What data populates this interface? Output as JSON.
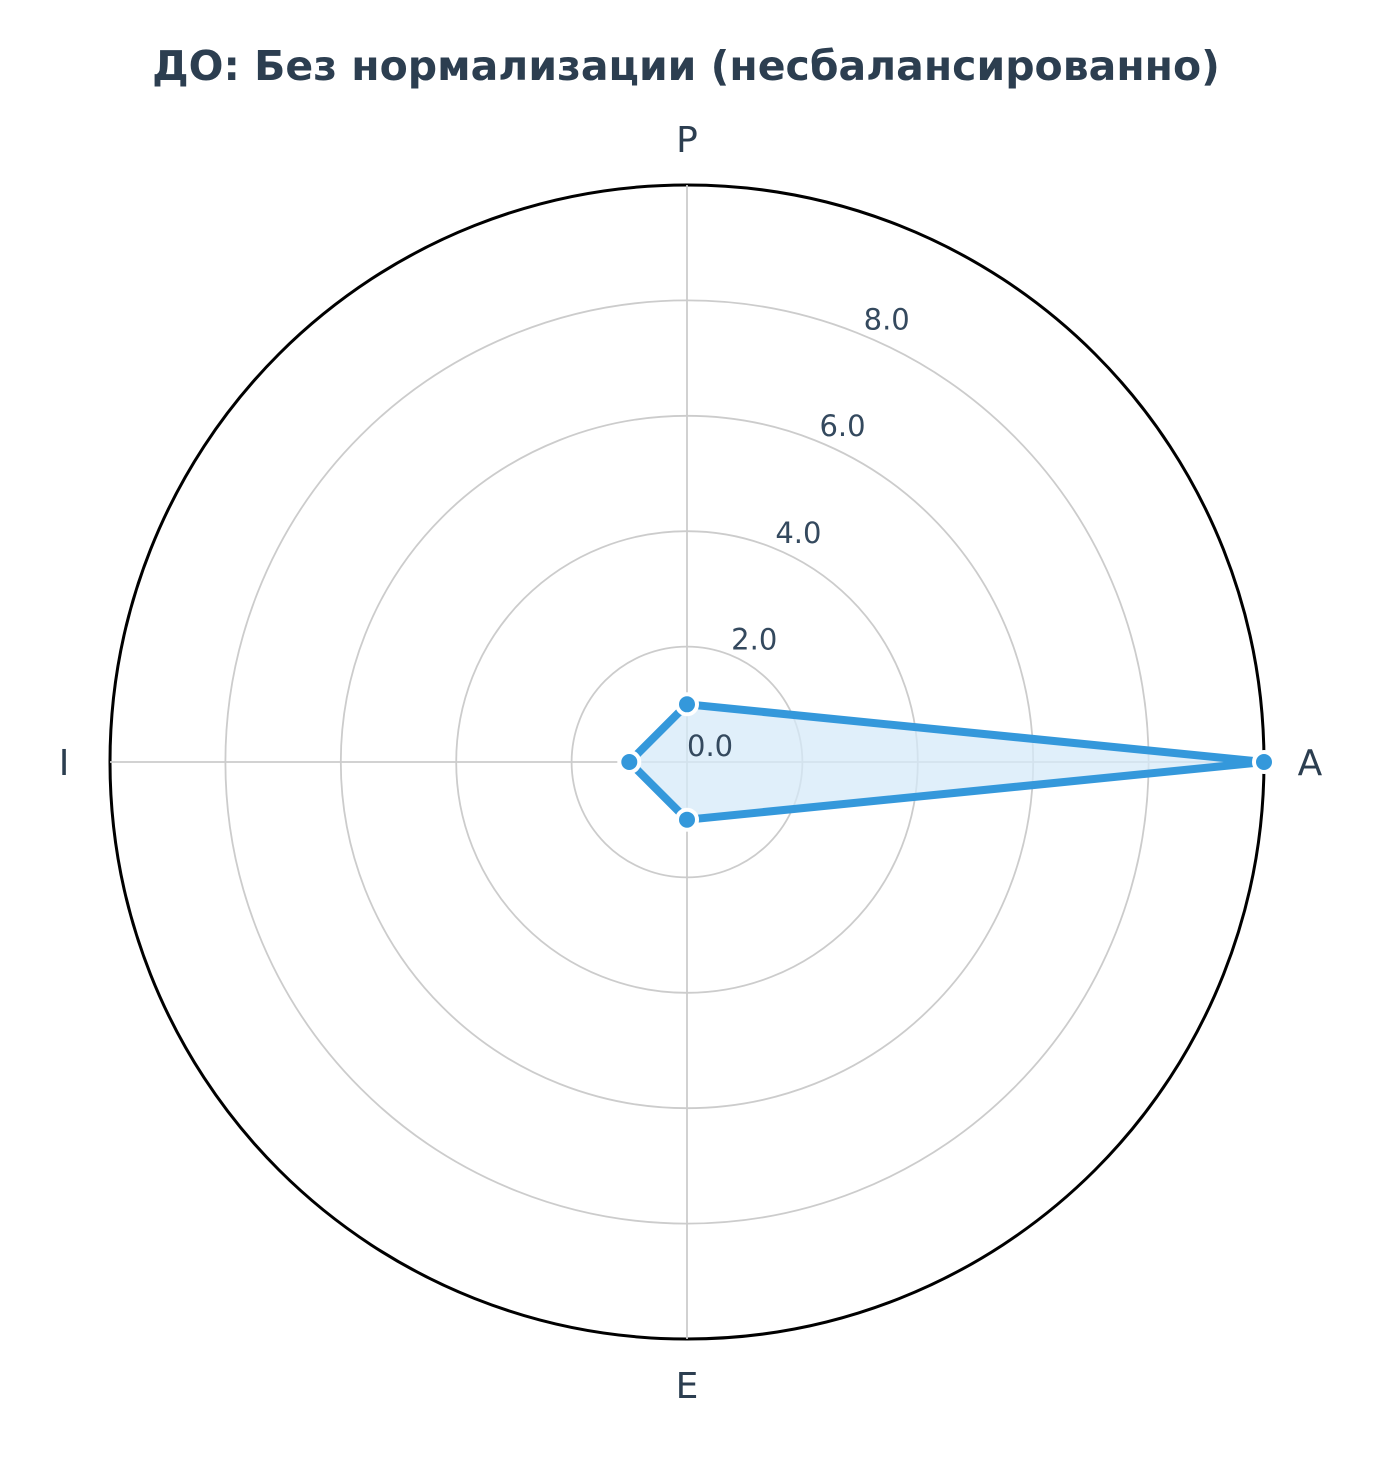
{
  "chart_data": {
    "type": "radar",
    "title": "ДО: Без нормализации (несбалансированно)",
    "categories": [
      "A",
      "P",
      "I",
      "E"
    ],
    "series": [
      {
        "values": [
          10.0,
          1.0,
          1.0,
          1.0
        ]
      }
    ],
    "rlim": [
      0,
      10
    ],
    "rticks": [
      0,
      2,
      4,
      6,
      8
    ],
    "rtick_labels": [
      "0.0",
      "2.0",
      "4.0",
      "6.0",
      "8.0"
    ],
    "grid": true,
    "colors": {
      "line": "#3498db",
      "fill": "#d6e9f8",
      "grid": "#cccccc",
      "frame": "#000000",
      "text": "#2c3e50"
    }
  }
}
